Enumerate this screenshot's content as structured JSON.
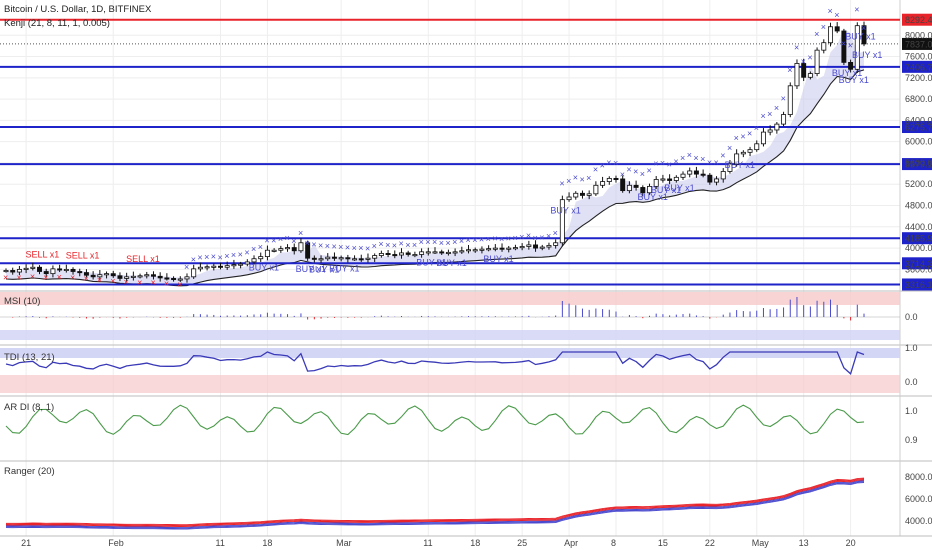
{
  "header": {
    "symbol_line": "Bitcoin / U.S. Dollar, 1D, BITFINEX",
    "indicator_line": "Kenji (21, 8, 11, 1, 0.005)"
  },
  "panes": {
    "msi": {
      "title": "MSI (10)",
      "ticks": [
        "0.0"
      ]
    },
    "tdi": {
      "title": "TDI (13, 21)",
      "ticks": [
        "1.0",
        "0.0"
      ]
    },
    "ardi": {
      "title": "AR DI (8, 1)",
      "ticks": [
        "1.0",
        "0.9"
      ]
    },
    "ranger": {
      "title": "Ranger (20)",
      "ticks": [
        "8000.0",
        "6000.0",
        "4000.0"
      ]
    }
  },
  "chart_data": {
    "type": "candlestick",
    "symbol": "Bitcoin / U.S. Dollar",
    "interval": "1D",
    "exchange": "BITFINEX",
    "y_ticks": [
      8000,
      7600,
      7200,
      6800,
      6400,
      6000,
      5600,
      5200,
      4800,
      4400,
      4000,
      3600
    ],
    "y_tick_labels": [
      "8000.0",
      "7600.0",
      "7200.0",
      "6800.0",
      "6400.0",
      "6000.0",
      "5600.0",
      "5200.0",
      "4800.0",
      "4400.0",
      "4000.0",
      "3600.0"
    ],
    "ylim": [
      3250,
      8550
    ],
    "x_labels": [
      "21",
      "Feb",
      "11",
      "18",
      "Mar",
      "11",
      "18",
      "25",
      "Apr",
      "8",
      "15",
      "22",
      "May",
      "13",
      "20"
    ],
    "horizontal_levels": [
      {
        "value": 8292.4,
        "label": "8292.4",
        "color": "#e8232a"
      },
      {
        "value": 7406.7,
        "label": "7406.7",
        "color": "#1e22c9"
      },
      {
        "value": 6275.7,
        "label": "6275.7",
        "color": "#1e22c9"
      },
      {
        "value": 5579.1,
        "label": "5579.1",
        "color": "#1e22c9"
      },
      {
        "value": 4185.9,
        "label": "4185.9",
        "color": "#1e22c9"
      },
      {
        "value": 3714.3,
        "label": "3714.3",
        "color": "#1e22c9"
      },
      {
        "value": 3316.1,
        "label": "3316.1",
        "color": "#1e22c9"
      }
    ],
    "last_price": {
      "value": 7837.0,
      "label": "7837.0"
    },
    "closes": [
      3580,
      3550,
      3600,
      3620,
      3640,
      3560,
      3520,
      3610,
      3590,
      3600,
      3560,
      3540,
      3490,
      3460,
      3500,
      3520,
      3480,
      3430,
      3460,
      3470,
      3480,
      3500,
      3470,
      3440,
      3430,
      3420,
      3420,
      3460,
      3610,
      3640,
      3650,
      3660,
      3640,
      3670,
      3690,
      3700,
      3740,
      3800,
      3840,
      3960,
      3960,
      3990,
      4010,
      3950,
      4100,
      3810,
      3790,
      3800,
      3830,
      3810,
      3820,
      3800,
      3800,
      3790,
      3810,
      3860,
      3900,
      3880,
      3870,
      3910,
      3880,
      3880,
      3930,
      3930,
      3930,
      3920,
      3920,
      3930,
      3950,
      3970,
      3970,
      3980,
      3990,
      4000,
      3990,
      4000,
      4010,
      4030,
      4060,
      4000,
      4020,
      4050,
      4100,
      4910,
      4960,
      5030,
      4990,
      5020,
      5180,
      5250,
      5310,
      5300,
      5080,
      5180,
      5140,
      5040,
      5160,
      5290,
      5300,
      5270,
      5330,
      5390,
      5450,
      5390,
      5370,
      5240,
      5300,
      5440,
      5580,
      5770,
      5800,
      5850,
      5960,
      6180,
      6220,
      6330,
      6510,
      7050,
      7470,
      7210,
      7280,
      7720,
      7860,
      8160,
      8080,
      7490,
      7360,
      8180,
      7837
    ],
    "buy_labels": [
      "BUY x1",
      "BUY x1",
      "BUY x1",
      "BUY x1",
      "BUY x1",
      "BUY x1",
      "BUY x1",
      "BUY x1",
      "BUY x1",
      "BUY x1",
      "BUY x1",
      "BUY x1",
      "BUY x1",
      "BUY x1",
      "BUY x1",
      "BUY x1",
      "BUY x1"
    ],
    "sell_labels": [
      "SELL x1",
      "SELL x1",
      "SELL x1"
    ]
  },
  "colors": {
    "sell": "#e8232a",
    "buy": "#4a4acf",
    "level_blue": "#1e22c9",
    "band_fill": "#c9c8ef",
    "grid": "#eeeeee"
  }
}
